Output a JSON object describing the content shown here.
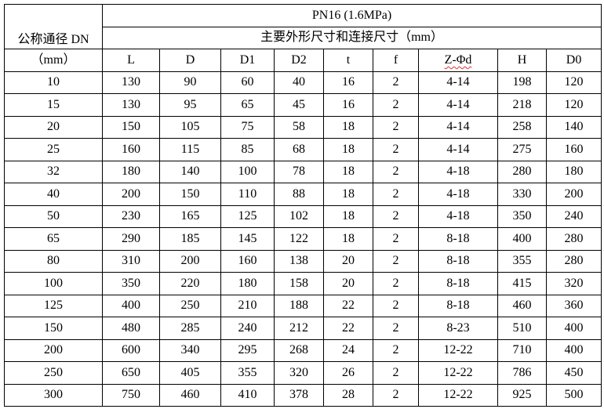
{
  "header": {
    "dn_label": "公称通径 DN",
    "dn_unit": "（mm）",
    "pressure": "PN16 (1.6MPa)",
    "dimensions_title": "主要外形尺寸和连接尺寸（mm）",
    "columns": [
      "L",
      "D",
      "D1",
      "D2",
      "t",
      "f",
      "Z-Φd",
      "H",
      "D0"
    ]
  },
  "rows": [
    [
      "10",
      "130",
      "90",
      "60",
      "40",
      "16",
      "2",
      "4-14",
      "198",
      "120"
    ],
    [
      "15",
      "130",
      "95",
      "65",
      "45",
      "16",
      "2",
      "4-14",
      "218",
      "120"
    ],
    [
      "20",
      "150",
      "105",
      "75",
      "58",
      "18",
      "2",
      "4-14",
      "258",
      "140"
    ],
    [
      "25",
      "160",
      "115",
      "85",
      "68",
      "18",
      "2",
      "4-14",
      "275",
      "160"
    ],
    [
      "32",
      "180",
      "140",
      "100",
      "78",
      "18",
      "2",
      "4-18",
      "280",
      "180"
    ],
    [
      "40",
      "200",
      "150",
      "110",
      "88",
      "18",
      "2",
      "4-18",
      "330",
      "200"
    ],
    [
      "50",
      "230",
      "165",
      "125",
      "102",
      "18",
      "2",
      "4-18",
      "350",
      "240"
    ],
    [
      "65",
      "290",
      "185",
      "145",
      "122",
      "18",
      "2",
      "8-18",
      "400",
      "280"
    ],
    [
      "80",
      "310",
      "200",
      "160",
      "138",
      "20",
      "2",
      "8-18",
      "355",
      "280"
    ],
    [
      "100",
      "350",
      "220",
      "180",
      "158",
      "20",
      "2",
      "8-18",
      "415",
      "320"
    ],
    [
      "125",
      "400",
      "250",
      "210",
      "188",
      "22",
      "2",
      "8-18",
      "460",
      "360"
    ],
    [
      "150",
      "480",
      "285",
      "240",
      "212",
      "22",
      "2",
      "8-23",
      "510",
      "400"
    ],
    [
      "200",
      "600",
      "340",
      "295",
      "268",
      "24",
      "2",
      "12-22",
      "710",
      "400"
    ],
    [
      "250",
      "650",
      "405",
      "355",
      "320",
      "26",
      "2",
      "12-22",
      "786",
      "450"
    ],
    [
      "300",
      "750",
      "460",
      "410",
      "378",
      "28",
      "2",
      "12-22",
      "925",
      "500"
    ]
  ]
}
